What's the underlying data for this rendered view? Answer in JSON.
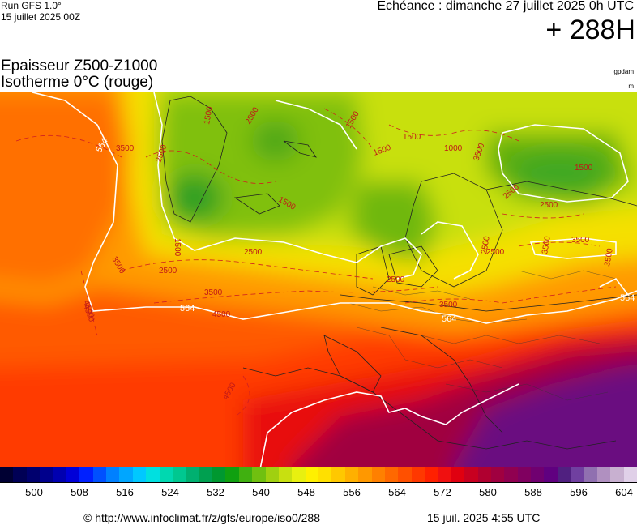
{
  "header": {
    "run_label": "Run GFS 1.0°",
    "run_date": "15 juillet 2025 00Z",
    "echeance": "Echéance : dimanche 27 juillet 2025 0h UTC",
    "lead_time": "+ 288H"
  },
  "titles": {
    "line1": "Epaisseur Z500-Z1000",
    "line2": "Isotherme 0°C (rouge)",
    "unit_top": "gpdam",
    "unit_bottom": "m"
  },
  "map": {
    "white_contour_labels": [
      "564",
      "564",
      "564",
      "564"
    ],
    "red_contour_labels": [
      "3500",
      "2500",
      "1500",
      "2500",
      "3500",
      "4500",
      "2500",
      "1500",
      "2500",
      "3500",
      "1500",
      "1500",
      "2500",
      "1000",
      "2500",
      "3500",
      "3500",
      "1500",
      "1500",
      "2500",
      "3500",
      "2500",
      "3500",
      "3500",
      "1500",
      "4500",
      "4500",
      "4500",
      "2500"
    ]
  },
  "legend": {
    "tick_labels": [
      "500",
      "508",
      "516",
      "524",
      "532",
      "540",
      "548",
      "556",
      "564",
      "572",
      "580",
      "588",
      "596",
      "604"
    ],
    "colors": [
      "#000033",
      "#000055",
      "#00006e",
      "#00008c",
      "#0000b0",
      "#0000d8",
      "#0020ff",
      "#0050ff",
      "#0080ff",
      "#00a6ff",
      "#00c8ff",
      "#00e0e0",
      "#00d8b0",
      "#00c890",
      "#00b070",
      "#00a050",
      "#009830",
      "#10a010",
      "#40b010",
      "#70c010",
      "#a0d010",
      "#c8e010",
      "#e8f010",
      "#fff000",
      "#ffe000",
      "#ffc800",
      "#ffb000",
      "#ff9800",
      "#ff8000",
      "#ff6800",
      "#ff5000",
      "#ff3800",
      "#ff2000",
      "#f01010",
      "#e00010",
      "#c80020",
      "#b00030",
      "#a00040",
      "#900050",
      "#800060",
      "#700070",
      "#600080",
      "#502080",
      "#7040a0",
      "#9070b0",
      "#b090c0",
      "#c8b0d0",
      "#e0d0e8"
    ]
  },
  "footer": {
    "url": "© http://www.infoclimat.fr/z/gfs/europe/iso0/288",
    "timestamp": "15 juil. 2025  4:55 UTC"
  }
}
